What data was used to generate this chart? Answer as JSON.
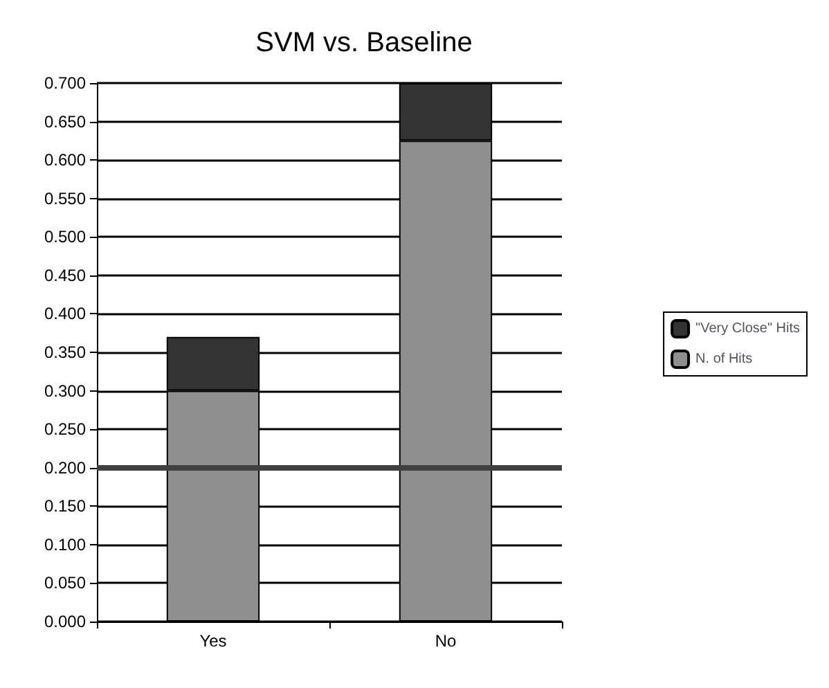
{
  "chart_data": {
    "type": "bar",
    "title": "SVM vs. Baseline",
    "categories": [
      "Yes",
      "No"
    ],
    "stacked": true,
    "series": [
      {
        "name": "N. of Hits",
        "color": "#8f8f8f",
        "values": [
          0.3,
          0.625
        ]
      },
      {
        "name": "\"Very Close\" Hits",
        "color": "#333333",
        "values": [
          0.07,
          0.075
        ]
      }
    ],
    "ylim": [
      0,
      0.7
    ],
    "yticks": [
      {
        "value": 0,
        "label": "0.000"
      },
      {
        "value": 0.05,
        "label": "0.050"
      },
      {
        "value": 0.1,
        "label": "0.100"
      },
      {
        "value": 0.15,
        "label": "0.150"
      },
      {
        "value": 0.2,
        "label": "0.200"
      },
      {
        "value": 0.25,
        "label": "0.250"
      },
      {
        "value": 0.3,
        "label": "0.300"
      },
      {
        "value": 0.35,
        "label": "0.350"
      },
      {
        "value": 0.4,
        "label": "0.400"
      },
      {
        "value": 0.45,
        "label": "0.450"
      },
      {
        "value": 0.5,
        "label": "0.500"
      },
      {
        "value": 0.55,
        "label": "0.550"
      },
      {
        "value": 0.6,
        "label": "0.600"
      },
      {
        "value": 0.65,
        "label": "0.650"
      },
      {
        "value": 0.7,
        "label": "0.700"
      }
    ],
    "ref_lines": [
      {
        "axis": "y",
        "value": 0.2,
        "color": "#404040"
      }
    ],
    "grid": "y",
    "legend": "right"
  }
}
